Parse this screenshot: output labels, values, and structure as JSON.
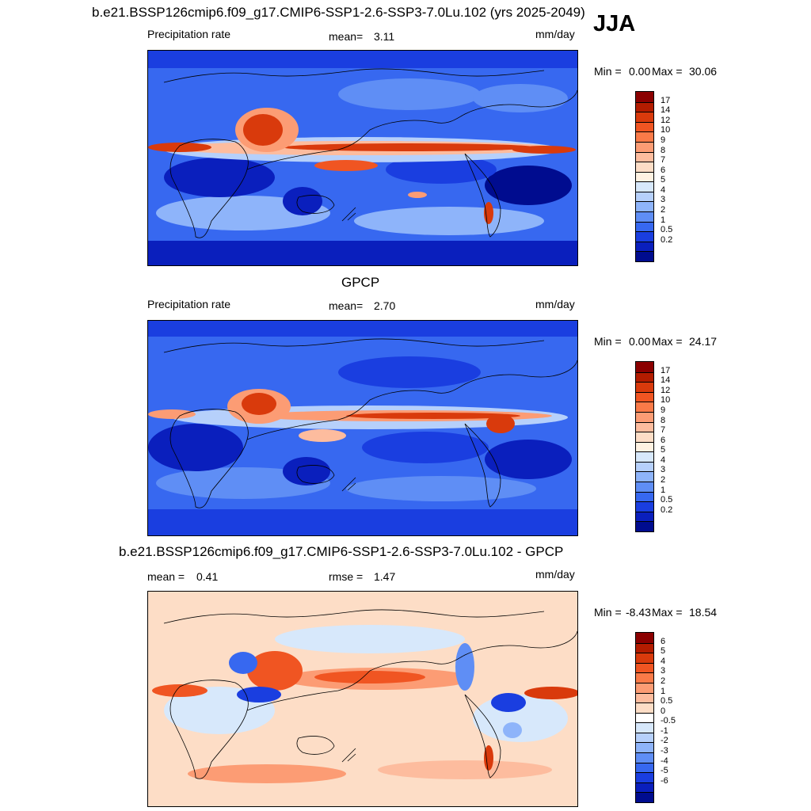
{
  "season": "JJA",
  "panels": [
    {
      "title": "b.e21.BSSP126cmip6.f09_g17.CMIP6-SSP1-2.6-SSP3-7.0Lu.102 (yrs 2025-2049)",
      "left_label": "Precipitation rate",
      "stat1_label": "mean=",
      "stat1_value": "3.11",
      "stat2_label": "",
      "stat2_value": "",
      "units": "mm/day",
      "min_label": "Min =",
      "min_value": "0.00",
      "max_label": "Max =",
      "max_value": "30.06",
      "colorbar_labels": [
        "17",
        "14",
        "12",
        "10",
        "9",
        "8",
        "7",
        "6",
        "5",
        "4",
        "3",
        "2",
        "1",
        "0.5",
        "0.2"
      ],
      "colorbar_colors": [
        "#8b0000",
        "#b31c00",
        "#d93a0c",
        "#f05522",
        "#fa7a48",
        "#fc9c74",
        "#fdbc9e",
        "#fdddc6",
        "#fff2e2",
        "#d7e8fb",
        "#b6d0fb",
        "#8eb4fa",
        "#5f8ef5",
        "#3768f0",
        "#1a3ee0",
        "#0a1fbd",
        "#000c8f"
      ]
    },
    {
      "title": "GPCP",
      "left_label": "Precipitation rate",
      "stat1_label": "mean=",
      "stat1_value": "2.70",
      "stat2_label": "",
      "stat2_value": "",
      "units": "mm/day",
      "min_label": "Min =",
      "min_value": "0.00",
      "max_label": "Max =",
      "max_value": "24.17",
      "colorbar_labels": [
        "17",
        "14",
        "12",
        "10",
        "9",
        "8",
        "7",
        "6",
        "5",
        "4",
        "3",
        "2",
        "1",
        "0.5",
        "0.2"
      ],
      "colorbar_colors": [
        "#8b0000",
        "#b31c00",
        "#d93a0c",
        "#f05522",
        "#fa7a48",
        "#fc9c74",
        "#fdbc9e",
        "#fdddc6",
        "#fff2e2",
        "#d7e8fb",
        "#b6d0fb",
        "#8eb4fa",
        "#5f8ef5",
        "#3768f0",
        "#1a3ee0",
        "#0a1fbd",
        "#000c8f"
      ]
    },
    {
      "title": "b.e21.BSSP126cmip6.f09_g17.CMIP6-SSP1-2.6-SSP3-7.0Lu.102 - GPCP",
      "left_label": "",
      "stat1_label": "mean =",
      "stat1_value": "0.41",
      "stat2_label": "rmse =",
      "stat2_value": "1.47",
      "units": "mm/day",
      "min_label": "Min =",
      "min_value": "-8.43",
      "max_label": "Max =",
      "max_value": "18.54",
      "colorbar_labels": [
        "6",
        "5",
        "4",
        "3",
        "2",
        "1",
        "0.5",
        "0",
        "-0.5",
        "-1",
        "-2",
        "-3",
        "-4",
        "-5",
        "-6"
      ],
      "colorbar_colors": [
        "#8b0000",
        "#b31c00",
        "#d93a0c",
        "#f05522",
        "#fa7a48",
        "#fc9c74",
        "#fdbc9e",
        "#fdddc6",
        "#ffffff",
        "#d7e8fb",
        "#b6d0fb",
        "#8eb4fa",
        "#5f8ef5",
        "#3768f0",
        "#1a3ee0",
        "#0a1fbd",
        "#000c8f"
      ]
    }
  ]
}
